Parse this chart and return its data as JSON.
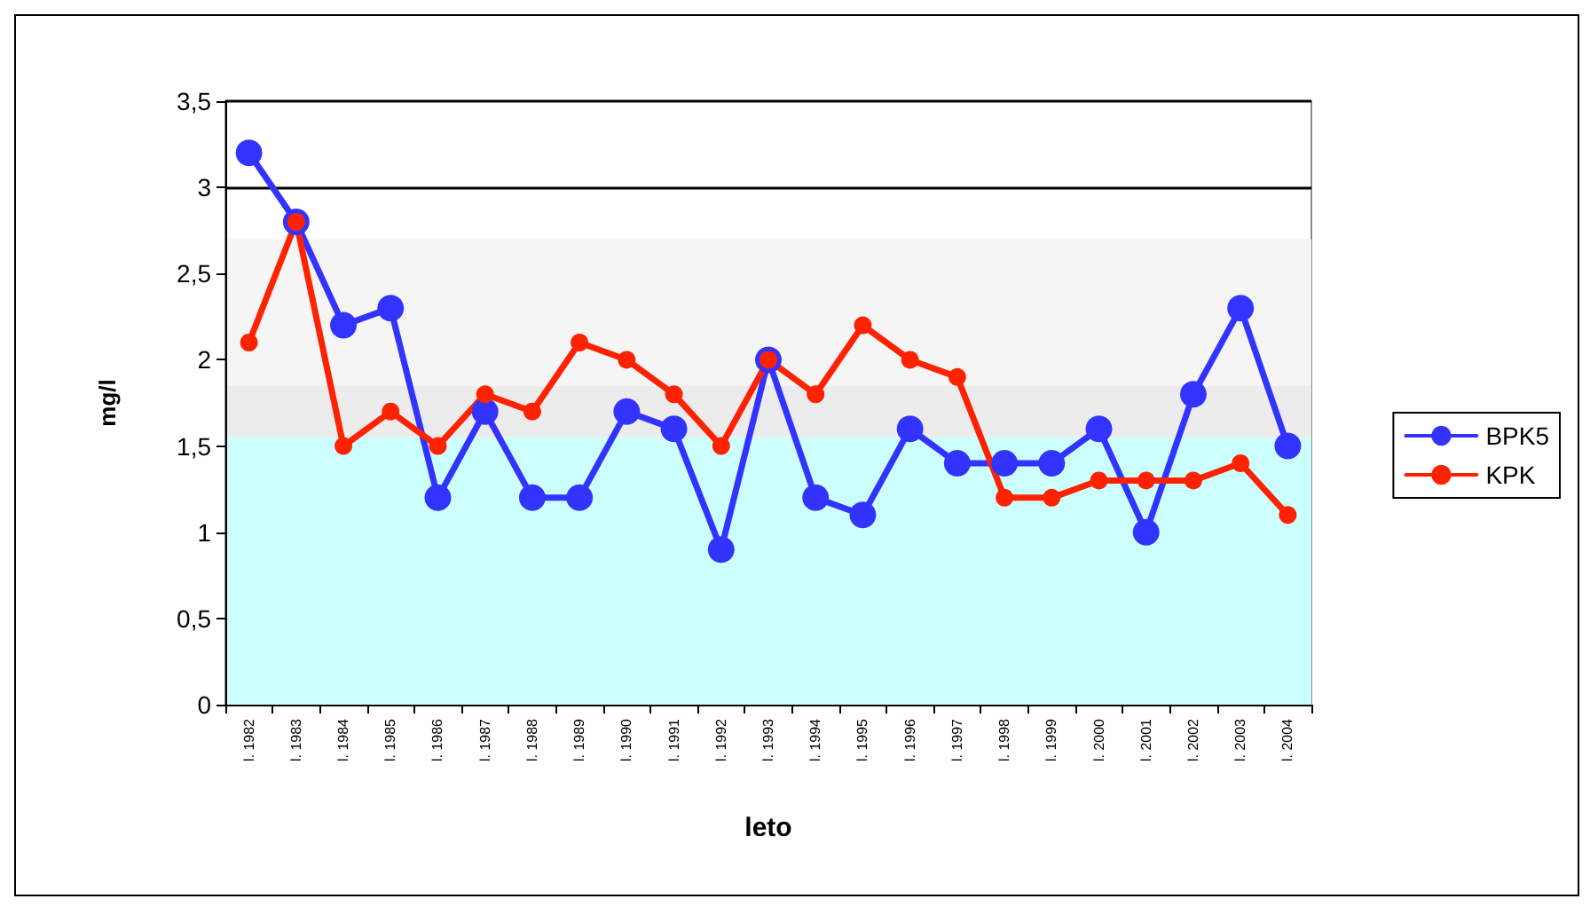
{
  "chart_data": {
    "type": "line",
    "xlabel": "leto",
    "ylabel": "mg/l",
    "categories": [
      "l. 1982",
      "l. 1983",
      "l. 1984",
      "l. 1985",
      "l. 1986",
      "l. 1987",
      "l. 1988",
      "l. 1989",
      "l. 1990",
      "l. 1991",
      "l. 1992",
      "l. 1993",
      "l. 1994",
      "l. 1995",
      "l. 1996",
      "l. 1997",
      "l. 1998",
      "l. 1999",
      "l. 2000",
      "l. 2001",
      "l. 2002",
      "l. 2003",
      "l. 2004"
    ],
    "series": [
      {
        "name": "BPK5",
        "color": "#3333ff",
        "values": [
          3.2,
          2.8,
          2.2,
          2.3,
          1.2,
          1.7,
          1.2,
          1.2,
          1.7,
          1.6,
          0.9,
          2.0,
          1.2,
          1.1,
          1.6,
          1.4,
          1.4,
          1.4,
          1.6,
          1.0,
          1.8,
          2.3,
          1.5
        ]
      },
      {
        "name": "KPK",
        "color": "#ff2200",
        "values": [
          2.1,
          2.8,
          1.5,
          1.7,
          1.5,
          1.8,
          1.7,
          2.1,
          2.0,
          1.8,
          1.5,
          2.0,
          1.8,
          2.2,
          2.0,
          1.9,
          1.2,
          1.2,
          1.3,
          1.3,
          1.3,
          1.4,
          1.1
        ]
      }
    ],
    "ylim": [
      0,
      3.5
    ],
    "yticks": [
      0,
      {
        "value": 0.5,
        "label": "0,5"
      },
      1,
      {
        "value": 1.5,
        "label": "1,5"
      },
      2,
      {
        "value": 2.5,
        "label": "2,5"
      },
      3,
      {
        "value": 3.5,
        "label": "3,5"
      }
    ],
    "bands": [
      {
        "axis": "y",
        "from": 0,
        "to": 1.55,
        "color": "#ccffff"
      },
      {
        "axis": "y",
        "from": 1.55,
        "to": 1.85,
        "color": "#ececec"
      },
      {
        "axis": "y",
        "from": 1.85,
        "to": 2.7,
        "color": "#f5f5f5"
      }
    ],
    "grid": "y",
    "legend": "right",
    "marker": "circle",
    "line_style": "solid"
  }
}
